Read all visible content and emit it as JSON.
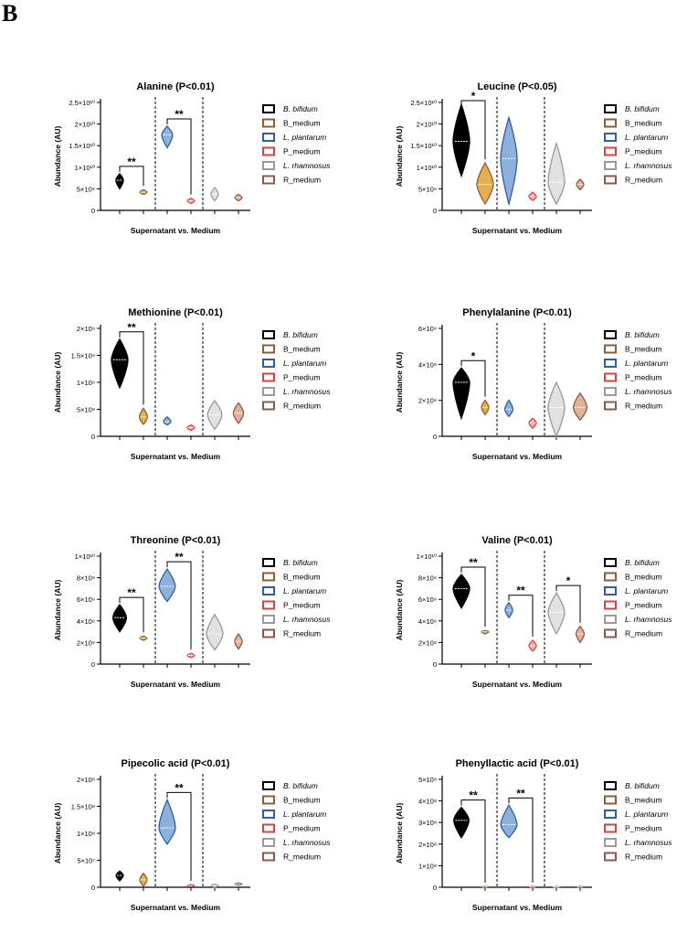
{
  "figure_label": "B",
  "legend": [
    {
      "label": "B. bifidum",
      "italic": true
    },
    {
      "label": "B_medium",
      "italic": false
    },
    {
      "label": "L. plantarum",
      "italic": true
    },
    {
      "label": "P_medium",
      "italic": false
    },
    {
      "label": "L. rhamnosus",
      "italic": true
    },
    {
      "label": "R_medium",
      "italic": false
    }
  ],
  "colors": {
    "bifidum": "#000000",
    "b_medium": "#8b5e34",
    "plantarum": "#2e5fa0",
    "p_medium": "#d94040",
    "rhamnosus": "#9a9a9a",
    "r_medium": "#8b5a4a"
  },
  "chart_data": [
    {
      "type": "violin",
      "title": "Alanine (P<0.01)",
      "xlabel": "Supernatant vs. Medium",
      "ylabel": "Abundance (AU)",
      "yticks": [
        0,
        5000000000.0,
        10000000000.0,
        15000000000.0,
        20000000000.0,
        25000000000.0
      ],
      "ytick_labels": [
        "0",
        "5×10⁹",
        "1×10¹⁰",
        "1.5×10¹⁰",
        "2×10¹⁰",
        "2.5×10¹⁰"
      ],
      "ylim": [
        0,
        25000000000.0
      ],
      "groups": [
        "B. bifidum",
        "B_medium",
        "L. plantarum",
        "P_medium",
        "L. rhamnosus",
        "R_medium"
      ],
      "medians": [
        7000000000.0,
        4200000000.0,
        17500000000.0,
        2200000000.0,
        3800000000.0,
        3000000000.0
      ],
      "mins": [
        5000000000.0,
        3700000000.0,
        14500000000.0,
        1600000000.0,
        2200000000.0,
        2200000000.0
      ],
      "maxs": [
        8500000000.0,
        4800000000.0,
        19500000000.0,
        2800000000.0,
        5300000000.0,
        3700000000.0
      ],
      "significance": [
        {
          "from": 0,
          "to": 1,
          "label": "**"
        },
        {
          "from": 2,
          "to": 3,
          "label": "**"
        }
      ]
    },
    {
      "type": "violin",
      "title": "Leucine (P<0.05)",
      "xlabel": "Supernatant vs. Medium",
      "ylabel": "Abundance (AU)",
      "yticks": [
        0,
        5000000000.0,
        10000000000.0,
        15000000000.0,
        20000000000.0,
        25000000000.0
      ],
      "ytick_labels": [
        "0",
        "5×10⁹",
        "1×10¹⁰",
        "1.5×10¹⁰",
        "2×10¹⁰",
        "2.5×10¹⁰"
      ],
      "ylim": [
        0,
        25000000000.0
      ],
      "groups": [
        "B. bifidum",
        "B_medium",
        "L. plantarum",
        "P_medium",
        "L. rhamnosus",
        "R_medium"
      ],
      "medians": [
        16000000000.0,
        6000000000.0,
        12000000000.0,
        3200000000.0,
        6500000000.0,
        6000000000.0
      ],
      "mins": [
        8000000000.0,
        1500000000.0,
        1500000000.0,
        2300000000.0,
        1500000000.0,
        4800000000.0
      ],
      "maxs": [
        24500000000.0,
        11000000000.0,
        21500000000.0,
        4200000000.0,
        15500000000.0,
        7200000000.0
      ],
      "significance": [
        {
          "from": 0,
          "to": 1,
          "label": "*"
        }
      ]
    },
    {
      "type": "violin",
      "title": "Methionine (P<0.01)",
      "xlabel": "Supernatant vs. Medium",
      "ylabel": "Abundance (AU)",
      "yticks": [
        0,
        500000000.0,
        1000000000.0,
        1500000000.0,
        2000000000.0
      ],
      "ytick_labels": [
        "0",
        "5×10⁸",
        "1×10⁹",
        "1.5×10⁹",
        "2×10⁹"
      ],
      "ylim": [
        0,
        2000000000.0
      ],
      "groups": [
        "B. bifidum",
        "B_medium",
        "L. plantarum",
        "P_medium",
        "L. rhamnosus",
        "R_medium"
      ],
      "medians": [
        1420000000.0,
        360000000.0,
        270000000.0,
        160000000.0,
        400000000.0,
        430000000.0
      ],
      "mins": [
        900000000.0,
        220000000.0,
        210000000.0,
        110000000.0,
        130000000.0,
        240000000.0
      ],
      "maxs": [
        1800000000.0,
        520000000.0,
        360000000.0,
        210000000.0,
        660000000.0,
        620000000.0
      ],
      "significance": [
        {
          "from": 0,
          "to": 1,
          "label": "**"
        }
      ]
    },
    {
      "type": "violin",
      "title": "Phenylalanine (P<0.01)",
      "xlabel": "Supernatant vs. Medium",
      "ylabel": "Abundance (AU)",
      "yticks": [
        0,
        2000000000.0,
        4000000000.0,
        6000000000.0
      ],
      "ytick_labels": [
        "0",
        "2×10⁹",
        "4×10⁹",
        "6×10⁹"
      ],
      "ylim": [
        0,
        6000000000.0
      ],
      "groups": [
        "B. bifidum",
        "B_medium",
        "L. plantarum",
        "P_medium",
        "L. rhamnosus",
        "R_medium"
      ],
      "medians": [
        3000000000.0,
        1600000000.0,
        1500000000.0,
        750000000.0,
        1600000000.0,
        1600000000.0
      ],
      "mins": [
        1000000000.0,
        1200000000.0,
        1100000000.0,
        450000000.0,
        0,
        900000000.0
      ],
      "maxs": [
        3800000000.0,
        2000000000.0,
        2000000000.0,
        1000000000.0,
        3000000000.0,
        2400000000.0
      ],
      "significance": [
        {
          "from": 0,
          "to": 1,
          "label": "*"
        }
      ]
    },
    {
      "type": "violin",
      "title": "Threonine (P<0.01)",
      "xlabel": "Supernatant vs. Medium",
      "ylabel": "Abundance (AU)",
      "yticks": [
        0,
        2000000000.0,
        4000000000.0,
        6000000000.0,
        8000000000.0,
        10000000000.0
      ],
      "ytick_labels": [
        "0",
        "2×10⁹",
        "4×10⁹",
        "6×10⁹",
        "8×10⁹",
        "1×10¹⁰"
      ],
      "ylim": [
        0,
        10000000000.0
      ],
      "groups": [
        "B. bifidum",
        "B_medium",
        "L. plantarum",
        "P_medium",
        "L. rhamnosus",
        "R_medium"
      ],
      "medians": [
        4300000000.0,
        2400000000.0,
        7200000000.0,
        800000000.0,
        2800000000.0,
        2100000000.0
      ],
      "mins": [
        3000000000.0,
        2200000000.0,
        5800000000.0,
        600000000.0,
        1300000000.0,
        1400000000.0
      ],
      "maxs": [
        5500000000.0,
        2600000000.0,
        8800000000.0,
        1000000000.0,
        4600000000.0,
        2800000000.0
      ],
      "significance": [
        {
          "from": 0,
          "to": 1,
          "label": "**"
        },
        {
          "from": 2,
          "to": 3,
          "label": "**"
        }
      ]
    },
    {
      "type": "violin",
      "title": "Valine (P<0.01)",
      "xlabel": "Supernatant vs. Medium",
      "ylabel": "Abundance (AU)",
      "yticks": [
        0,
        2000000000.0,
        4000000000.0,
        6000000000.0,
        8000000000.0,
        10000000000.0
      ],
      "ytick_labels": [
        "0",
        "2×10⁹",
        "4×10⁹",
        "6×10⁹",
        "8×10⁹",
        "1×10¹⁰"
      ],
      "ylim": [
        0,
        10000000000.0
      ],
      "groups": [
        "B. bifidum",
        "B_medium",
        "L. plantarum",
        "P_medium",
        "L. rhamnosus",
        "R_medium"
      ],
      "medians": [
        7000000000.0,
        3000000000.0,
        5000000000.0,
        1700000000.0,
        4800000000.0,
        2800000000.0
      ],
      "mins": [
        5200000000.0,
        2800000000.0,
        4300000000.0,
        1200000000.0,
        2800000000.0,
        2000000000.0
      ],
      "maxs": [
        8300000000.0,
        3100000000.0,
        5700000000.0,
        2200000000.0,
        6600000000.0,
        3500000000.0
      ],
      "significance": [
        {
          "from": 0,
          "to": 1,
          "label": "**"
        },
        {
          "from": 2,
          "to": 3,
          "label": "**"
        },
        {
          "from": 4,
          "to": 5,
          "label": "*"
        }
      ]
    },
    {
      "type": "violin",
      "title": "Pipecolic acid (P<0.01)",
      "xlabel": "Supernatant vs. Medium",
      "ylabel": "Abundance (AU)",
      "yticks": [
        0,
        50000000.0,
        100000000.0,
        150000000.0,
        200000000.0
      ],
      "ytick_labels": [
        "0",
        "5×10⁷",
        "1×10⁸",
        "1.5×10⁸",
        "2×10⁸"
      ],
      "ylim": [
        0,
        200000000.0
      ],
      "groups": [
        "B. bifidum",
        "B_medium",
        "L. plantarum",
        "P_medium",
        "L. rhamnosus",
        "R_medium"
      ],
      "medians": [
        22000000.0,
        14000000.0,
        110000000.0,
        3000000.0,
        3000000.0,
        6000000.0
      ],
      "mins": [
        12000000.0,
        2000000.0,
        80000000.0,
        1000000.0,
        0,
        4000000.0
      ],
      "maxs": [
        30000000.0,
        26000000.0,
        162000000.0,
        5000000.0,
        6000000.0,
        8000000.0
      ],
      "significance": [
        {
          "from": 2,
          "to": 3,
          "label": "**"
        }
      ]
    },
    {
      "type": "violin",
      "title": "Phenyllactic acid (P<0.01)",
      "xlabel": "Supernatant vs. Medium",
      "ylabel": "Abundance (AU)",
      "yticks": [
        0,
        100000000.0,
        200000000.0,
        300000000.0,
        400000000.0,
        500000000.0
      ],
      "ytick_labels": [
        "0",
        "1×10⁸",
        "2×10⁸",
        "3×10⁸",
        "4×10⁸",
        "5×10⁸"
      ],
      "ylim": [
        0,
        500000000.0
      ],
      "groups": [
        "B. bifidum",
        "B_medium",
        "L. plantarum",
        "P_medium",
        "L. rhamnosus",
        "R_medium"
      ],
      "medians": [
        310000000.0,
        2000000.0,
        290000000.0,
        2000000.0,
        2000000.0,
        2000000.0
      ],
      "mins": [
        230000000.0,
        0,
        230000000.0,
        0,
        0,
        0
      ],
      "maxs": [
        370000000.0,
        4000000.0,
        380000000.0,
        4000000.0,
        4000000.0,
        4000000.0
      ],
      "significance": [
        {
          "from": 0,
          "to": 1,
          "label": "**"
        },
        {
          "from": 2,
          "to": 3,
          "label": "**"
        }
      ]
    }
  ]
}
